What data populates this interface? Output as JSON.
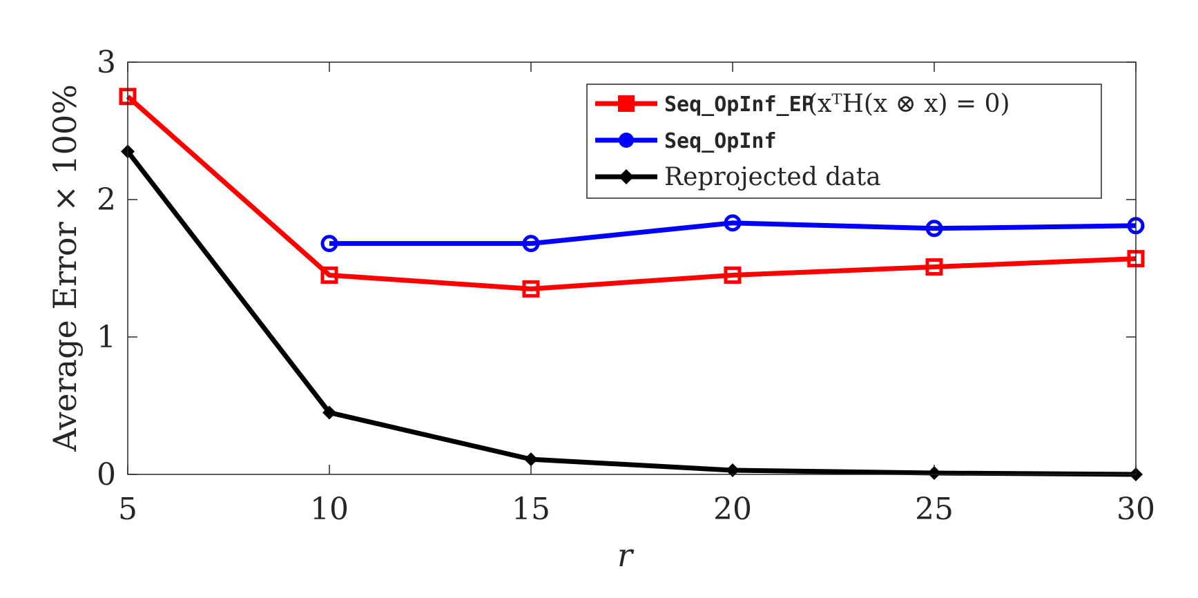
{
  "chart_data": {
    "type": "line",
    "title": "",
    "xlabel": "r",
    "ylabel": "Average Error × 100%",
    "x": [
      5,
      10,
      15,
      20,
      25,
      30
    ],
    "xlim": [
      5,
      30
    ],
    "ylim": [
      0,
      3
    ],
    "xticks": [
      "5",
      "10",
      "15",
      "20",
      "25",
      "30"
    ],
    "yticks": [
      "0",
      "1",
      "2",
      "3"
    ],
    "grid": false,
    "legend_position": "top-right",
    "series": [
      {
        "name": "Seq_OpInf_EP",
        "label_suffix": "(xᵀH(x ⊗ x) = 0)",
        "color": "#ff0000",
        "marker": "square",
        "x": [
          5,
          10,
          15,
          20,
          25,
          30
        ],
        "values": [
          2.75,
          1.45,
          1.35,
          1.45,
          1.51,
          1.57
        ]
      },
      {
        "name": "Seq_OpInf",
        "color": "#0000ff",
        "marker": "circle",
        "x": [
          10,
          15,
          20,
          25,
          30
        ],
        "values": [
          1.68,
          1.68,
          1.83,
          1.79,
          1.81
        ]
      },
      {
        "name": "Reprojected data",
        "color": "#000000",
        "marker": "diamond",
        "x": [
          5,
          10,
          15,
          20,
          25,
          30
        ],
        "values": [
          2.35,
          0.45,
          0.11,
          0.03,
          0.01,
          0.0
        ]
      }
    ]
  }
}
